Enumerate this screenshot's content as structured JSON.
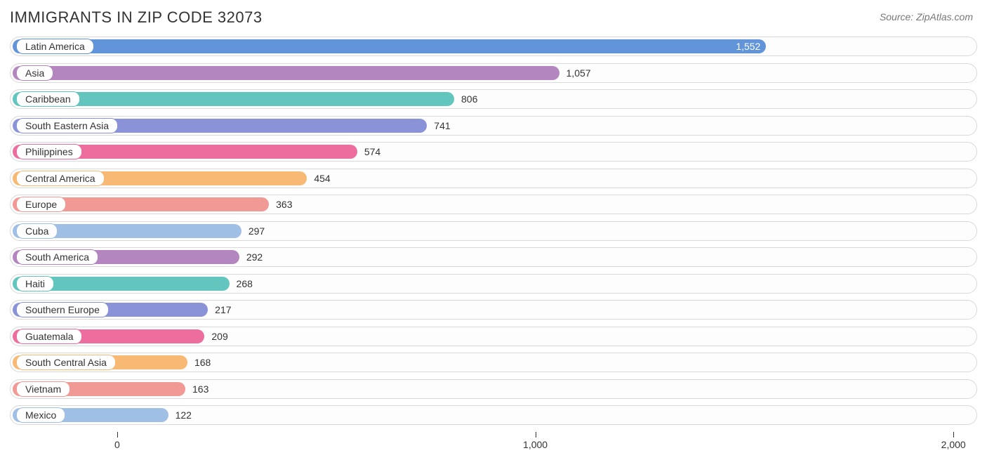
{
  "header": {
    "title": "IMMIGRANTS IN ZIP CODE 32073",
    "source": "Source: ZipAtlas.com"
  },
  "chart": {
    "type": "bar-horizontal",
    "track_border_color": "#d9d9d9",
    "track_bg": "#fdfdfd",
    "label_fontsize": 14,
    "title_fontsize": 22,
    "title_color": "#333333",
    "value_color": "#333333",
    "label_pill_bg": "#ffffff",
    "axis": {
      "min": -250,
      "max": 2050,
      "ticks": [
        0,
        1000,
        2000
      ],
      "tick_labels": [
        "0",
        "1,000",
        "2,000"
      ]
    },
    "bars": [
      {
        "label": "Latin America",
        "value": 1552,
        "display": "1,552",
        "color": "#6194d8",
        "label_inside_bar": true
      },
      {
        "label": "Asia",
        "value": 1057,
        "display": "1,057",
        "color": "#b486c0",
        "label_inside_bar": false
      },
      {
        "label": "Caribbean",
        "value": 806,
        "display": "806",
        "color": "#62c5be",
        "label_inside_bar": false
      },
      {
        "label": "South Eastern Asia",
        "value": 741,
        "display": "741",
        "color": "#8a93d8",
        "label_inside_bar": false
      },
      {
        "label": "Philippines",
        "value": 574,
        "display": "574",
        "color": "#ed6e9e",
        "label_inside_bar": false
      },
      {
        "label": "Central America",
        "value": 454,
        "display": "454",
        "color": "#f7b974",
        "label_inside_bar": false
      },
      {
        "label": "Europe",
        "value": 363,
        "display": "363",
        "color": "#f19995",
        "label_inside_bar": false
      },
      {
        "label": "Cuba",
        "value": 297,
        "display": "297",
        "color": "#a0bfe4",
        "label_inside_bar": false
      },
      {
        "label": "South America",
        "value": 292,
        "display": "292",
        "color": "#b486c0",
        "label_inside_bar": false
      },
      {
        "label": "Haiti",
        "value": 268,
        "display": "268",
        "color": "#62c5be",
        "label_inside_bar": false
      },
      {
        "label": "Southern Europe",
        "value": 217,
        "display": "217",
        "color": "#8a93d8",
        "label_inside_bar": false
      },
      {
        "label": "Guatemala",
        "value": 209,
        "display": "209",
        "color": "#ed6e9e",
        "label_inside_bar": false
      },
      {
        "label": "South Central Asia",
        "value": 168,
        "display": "168",
        "color": "#f7b974",
        "label_inside_bar": false
      },
      {
        "label": "Vietnam",
        "value": 163,
        "display": "163",
        "color": "#f19995",
        "label_inside_bar": false
      },
      {
        "label": "Mexico",
        "value": 122,
        "display": "122",
        "color": "#a0bfe4",
        "label_inside_bar": false
      }
    ]
  }
}
